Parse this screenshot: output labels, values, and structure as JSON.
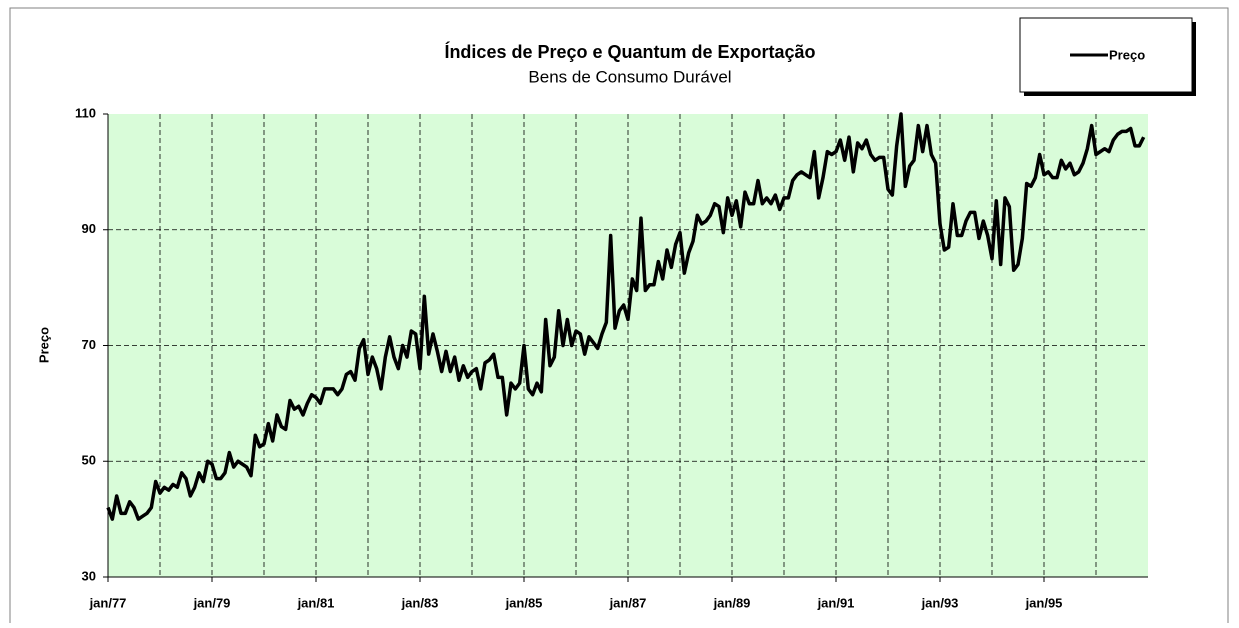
{
  "chart_data": {
    "type": "line",
    "title": "Índices de Preço e Quantum de Exportação",
    "subtitle": "Bens de Consumo Durável",
    "y_label": "Preço",
    "legend": "top-right",
    "grid": true,
    "ylim": [
      30,
      110
    ],
    "yticks": [
      30,
      50,
      70,
      90,
      110
    ],
    "categories": [
      "jan/77",
      null,
      null,
      null,
      null,
      null,
      null,
      null,
      null,
      null,
      null,
      null,
      null,
      null,
      null,
      null,
      null,
      null,
      null,
      null,
      null,
      null,
      null,
      null,
      "jan/79",
      null,
      null,
      null,
      null,
      null,
      null,
      null,
      null,
      null,
      null,
      null,
      null,
      null,
      null,
      null,
      null,
      null,
      null,
      null,
      null,
      null,
      null,
      null,
      "jan/81",
      null,
      null,
      null,
      null,
      null,
      null,
      null,
      null,
      null,
      null,
      null,
      null,
      null,
      null,
      null,
      null,
      null,
      null,
      null,
      null,
      null,
      null,
      null,
      "jan/83",
      null,
      null,
      null,
      null,
      null,
      null,
      null,
      null,
      null,
      null,
      null,
      null,
      null,
      null,
      null,
      null,
      null,
      null,
      null,
      null,
      null,
      null,
      null,
      "jan/85",
      null,
      null,
      null,
      null,
      null,
      null,
      null,
      null,
      null,
      null,
      null,
      null,
      null,
      null,
      null,
      null,
      null,
      null,
      null,
      null,
      null,
      null,
      null,
      "jan/87",
      null,
      null,
      null,
      null,
      null,
      null,
      null,
      null,
      null,
      null,
      null,
      null,
      null,
      null,
      null,
      null,
      null,
      null,
      null,
      null,
      null,
      null,
      null,
      "jan/89",
      null,
      null,
      null,
      null,
      null,
      null,
      null,
      null,
      null,
      null,
      null,
      null,
      null,
      null,
      null,
      null,
      null,
      null,
      null,
      null,
      null,
      null,
      null,
      "jan/91",
      null,
      null,
      null,
      null,
      null,
      null,
      null,
      null,
      null,
      null,
      null,
      null,
      null,
      null,
      null,
      null,
      null,
      null,
      null,
      null,
      null,
      null,
      null,
      "jan/93",
      null,
      null,
      null,
      null,
      null,
      null,
      null,
      null,
      null,
      null,
      null,
      null,
      null,
      null,
      null,
      null,
      null,
      null,
      null,
      null,
      null,
      null,
      null,
      "jan/95",
      null,
      null,
      null,
      null,
      null,
      null,
      null,
      null,
      null,
      null,
      null,
      null,
      null,
      null,
      null,
      null,
      null,
      null,
      null,
      null,
      null,
      null,
      null
    ],
    "series": [
      {
        "name": "Preço",
        "color": "#000000",
        "values": [
          42,
          40,
          44,
          41,
          41,
          43,
          42,
          40,
          40.5,
          41,
          42,
          46.5,
          44.5,
          45.5,
          45,
          46,
          45.5,
          48,
          47,
          44,
          45.5,
          48,
          46.5,
          50,
          49.5,
          47,
          47,
          48,
          51.5,
          49,
          50,
          49.5,
          49,
          47.5,
          54.5,
          52.5,
          53,
          56.5,
          53.5,
          58,
          56,
          55.5,
          60.5,
          59,
          59.5,
          58,
          60,
          61.5,
          61,
          60,
          62.5,
          62.5,
          62.5,
          61.5,
          62.5,
          65,
          65.5,
          64,
          69.5,
          71,
          65,
          68,
          66,
          62.5,
          68,
          71.5,
          68,
          66,
          70,
          68,
          72.5,
          72,
          66,
          78.5,
          68.5,
          72,
          69,
          65.5,
          69,
          65.5,
          68,
          64,
          66.5,
          64.5,
          65.5,
          66,
          62.5,
          67,
          67.5,
          68.5,
          64.5,
          64.5,
          58,
          63.5,
          62.5,
          63.5,
          70,
          62.5,
          61.5,
          63.5,
          62,
          74.5,
          66.5,
          68,
          76,
          70,
          74.5,
          70,
          72.5,
          72,
          68.5,
          71.5,
          70.5,
          69.5,
          72,
          74,
          89,
          73,
          76,
          77,
          74.5,
          81.5,
          79.5,
          92,
          79.5,
          80.5,
          80.5,
          84.5,
          81.5,
          86.5,
          83.5,
          87.5,
          89.5,
          82.5,
          86,
          88,
          92.5,
          91,
          91.5,
          92.5,
          94.5,
          94,
          89.5,
          95.5,
          92.5,
          95,
          90.5,
          96.5,
          94.5,
          94.5,
          98.5,
          94.5,
          95.5,
          94.5,
          96,
          93.5,
          95.5,
          95.5,
          98.5,
          99.5,
          100,
          99.5,
          99,
          103.5,
          95.5,
          99,
          103.5,
          103,
          103.5,
          105.5,
          102,
          106,
          100,
          105,
          104,
          105.5,
          103,
          102,
          102.5,
          102.5,
          97,
          96,
          104.5,
          110,
          97.5,
          101,
          102,
          108,
          103.5,
          108,
          103,
          101.5,
          91,
          86.5,
          87,
          94.5,
          89,
          89,
          91.5,
          93,
          93,
          88.5,
          91.5,
          89,
          85,
          95,
          84,
          95.5,
          94,
          83,
          84,
          88.5,
          98,
          97.5,
          99,
          103,
          99.5,
          100,
          99,
          99,
          102,
          100.5,
          101.5,
          99.5,
          100,
          101.5,
          104,
          108,
          103,
          103.5,
          104,
          103.5,
          105.5,
          106.5,
          107,
          107,
          107.5,
          104.5,
          104.5,
          106
        ]
      }
    ]
  }
}
